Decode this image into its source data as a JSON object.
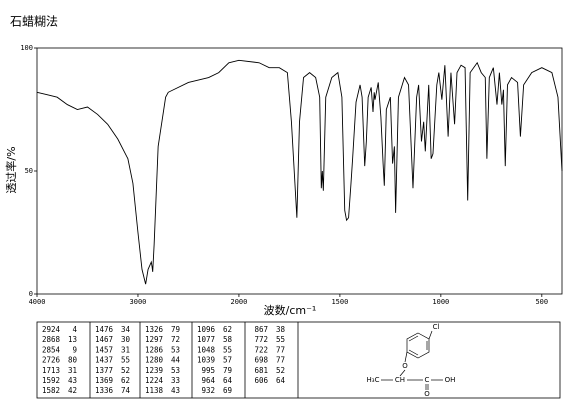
{
  "chart_data": {
    "type": "line",
    "title": "石蜡糊法",
    "x_label": "波数/cm⁻¹",
    "y_label": "透过率/%",
    "xlim": [
      4000,
      400
    ],
    "xticks": [
      4000,
      3000,
      2000,
      1500,
      1000,
      500
    ],
    "ylim": [
      0,
      100
    ],
    "yticks": [
      0,
      50,
      100
    ],
    "grid": false,
    "color": "#000000",
    "x": [
      4000,
      3900,
      3800,
      3700,
      3600,
      3500,
      3400,
      3300,
      3200,
      3100,
      3050,
      3000,
      2960,
      2924,
      2900,
      2868,
      2860,
      2854,
      2840,
      2800,
      2726,
      2700,
      2500,
      2300,
      2200,
      2100,
      2000,
      1900,
      1850,
      1800,
      1760,
      1740,
      1713,
      1700,
      1680,
      1650,
      1620,
      1600,
      1592,
      1587,
      1582,
      1570,
      1540,
      1510,
      1490,
      1476,
      1467,
      1457,
      1445,
      1437,
      1420,
      1400,
      1390,
      1377,
      1369,
      1360,
      1345,
      1336,
      1330,
      1326,
      1310,
      1297,
      1290,
      1286,
      1280,
      1270,
      1250,
      1239,
      1230,
      1224,
      1210,
      1180,
      1160,
      1138,
      1120,
      1110,
      1096,
      1085,
      1077,
      1060,
      1048,
      1039,
      1020,
      1010,
      995,
      980,
      964,
      950,
      932,
      920,
      900,
      880,
      867,
      855,
      820,
      800,
      780,
      772,
      760,
      740,
      722,
      710,
      698,
      690,
      681,
      670,
      650,
      620,
      606,
      590,
      550,
      500,
      450,
      420,
      400
    ],
    "values": [
      82,
      81,
      80,
      77,
      75,
      76,
      73,
      69,
      63,
      55,
      45,
      25,
      10,
      4,
      10,
      13,
      11,
      9,
      20,
      60,
      80,
      82,
      86,
      88,
      90,
      94,
      95,
      94,
      92,
      92,
      90,
      70,
      31,
      70,
      88,
      90,
      88,
      80,
      43,
      50,
      42,
      80,
      88,
      90,
      80,
      34,
      30,
      31,
      45,
      55,
      78,
      85,
      80,
      52,
      62,
      80,
      84,
      74,
      82,
      79,
      86,
      72,
      60,
      53,
      44,
      75,
      80,
      53,
      60,
      33,
      80,
      88,
      85,
      43,
      80,
      85,
      62,
      70,
      58,
      85,
      55,
      57,
      85,
      90,
      79,
      93,
      64,
      90,
      69,
      90,
      93,
      92,
      38,
      90,
      94,
      90,
      88,
      55,
      88,
      92,
      77,
      90,
      77,
      83,
      52,
      85,
      88,
      86,
      64,
      85,
      90,
      92,
      90,
      80,
      50
    ]
  },
  "peak_table": {
    "columns": [
      [
        [
          2924,
          4
        ],
        [
          2868,
          13
        ],
        [
          2854,
          9
        ],
        [
          2726,
          80
        ],
        [
          1713,
          31
        ],
        [
          1592,
          43
        ],
        [
          1582,
          42
        ]
      ],
      [
        [
          1476,
          34
        ],
        [
          1467,
          30
        ],
        [
          1457,
          31
        ],
        [
          1437,
          55
        ],
        [
          1377,
          52
        ],
        [
          1369,
          62
        ],
        [
          1336,
          74
        ]
      ],
      [
        [
          1326,
          79
        ],
        [
          1297,
          72
        ],
        [
          1286,
          53
        ],
        [
          1280,
          44
        ],
        [
          1239,
          53
        ],
        [
          1224,
          33
        ],
        [
          1138,
          43
        ]
      ],
      [
        [
          1096,
          62
        ],
        [
          1077,
          58
        ],
        [
          1048,
          55
        ],
        [
          1039,
          57
        ],
        [
          995,
          79
        ],
        [
          964,
          64
        ],
        [
          932,
          69
        ]
      ],
      [
        [
          867,
          38
        ],
        [
          772,
          55
        ],
        [
          722,
          77
        ],
        [
          698,
          77
        ],
        [
          681,
          52
        ],
        [
          606,
          64
        ]
      ]
    ]
  },
  "structure": {
    "labels": [
      "Cl",
      "O",
      "H₃C",
      "CH",
      "C",
      "OH",
      "O"
    ]
  }
}
